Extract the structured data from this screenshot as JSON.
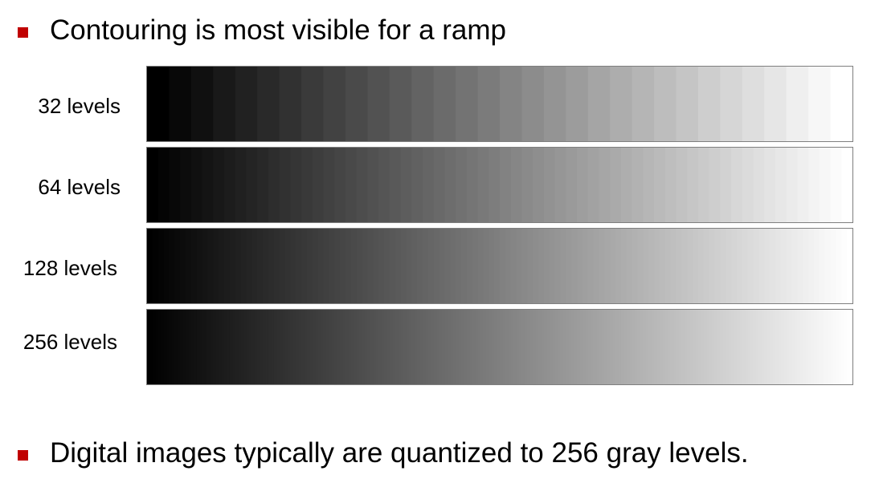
{
  "bullets": [
    {
      "text": "Contouring is most visible for a ramp"
    },
    {
      "text": "Digital images typically are quantized to 256 gray levels."
    }
  ],
  "ramps": [
    {
      "label": "32 levels",
      "levels": 32
    },
    {
      "label": "64 levels",
      "levels": 64
    },
    {
      "label": "128 levels",
      "levels": 128
    },
    {
      "label": "256 levels",
      "levels": 256
    }
  ],
  "colors": {
    "bullet": "#c00000",
    "ramp_border": "#7f7f7f"
  }
}
